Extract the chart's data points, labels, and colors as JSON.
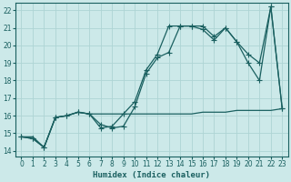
{
  "xlabel": "Humidex (Indice chaleur)",
  "ylabel": "",
  "background_color": "#cce9e9",
  "grid_color": "#aed4d4",
  "line_color": "#1a6060",
  "xlim": [
    -0.5,
    23.5
  ],
  "ylim": [
    13.7,
    22.4
  ],
  "xticks": [
    0,
    1,
    2,
    3,
    4,
    5,
    6,
    7,
    8,
    9,
    10,
    11,
    12,
    13,
    14,
    15,
    16,
    17,
    18,
    19,
    20,
    21,
    22,
    23
  ],
  "yticks": [
    14,
    15,
    16,
    17,
    18,
    19,
    20,
    21,
    22
  ],
  "line1_x": [
    0,
    1,
    2,
    3,
    4,
    5,
    6,
    7,
    8,
    9,
    10,
    11,
    12,
    13,
    14,
    15,
    16,
    17,
    18,
    19,
    20,
    21,
    22,
    23
  ],
  "line1_y": [
    14.8,
    14.7,
    14.2,
    15.9,
    16.0,
    16.2,
    16.1,
    15.5,
    15.3,
    15.4,
    16.5,
    18.4,
    19.3,
    19.6,
    21.1,
    21.1,
    21.1,
    20.5,
    21.0,
    20.2,
    19.0,
    18.0,
    22.2,
    16.4
  ],
  "line2_x": [
    0,
    1,
    2,
    3,
    4,
    5,
    6,
    7,
    8,
    9,
    10,
    11,
    12,
    13,
    14,
    15,
    16,
    17,
    18,
    19,
    20,
    21,
    22,
    23
  ],
  "line2_y": [
    14.8,
    14.7,
    14.2,
    15.9,
    16.0,
    16.2,
    16.1,
    15.3,
    15.4,
    16.1,
    16.8,
    18.6,
    19.5,
    21.1,
    21.1,
    21.1,
    20.9,
    20.3,
    21.0,
    20.2,
    19.5,
    19.0,
    22.2,
    16.4
  ],
  "line3_x": [
    0,
    1,
    2,
    3,
    4,
    5,
    6,
    7,
    8,
    9,
    10,
    11,
    12,
    13,
    14,
    15,
    16,
    17,
    18,
    19,
    20,
    21,
    22,
    23
  ],
  "line3_y": [
    14.8,
    14.8,
    14.2,
    15.9,
    16.0,
    16.2,
    16.1,
    16.1,
    16.1,
    16.1,
    16.1,
    16.1,
    16.1,
    16.1,
    16.1,
    16.1,
    16.2,
    16.2,
    16.2,
    16.3,
    16.3,
    16.3,
    16.3,
    16.4
  ],
  "marker_size": 3,
  "line_width": 0.9,
  "xlabel_fontsize": 6.5,
  "tick_fontsize": 5.5
}
